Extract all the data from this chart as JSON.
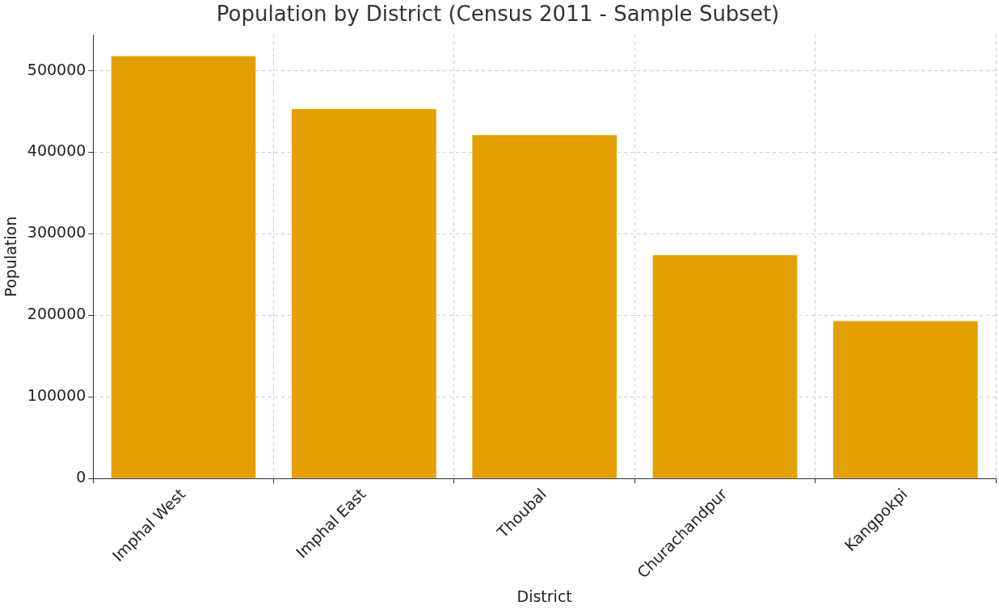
{
  "chart_data": {
    "type": "bar",
    "title": "Population by District (Census 2011 - Sample Subset)",
    "xlabel": "District",
    "ylabel": "Population",
    "categories": [
      "Imphal West",
      "Imphal East",
      "Thoubal",
      "Churachandpur",
      "Kangpokpi"
    ],
    "values": [
      518000,
      453000,
      421000,
      274000,
      193000
    ],
    "color": "#e3a000",
    "ylim": [
      0,
      544000
    ],
    "yticks": [
      0,
      100000,
      200000,
      300000,
      400000,
      500000
    ],
    "grid": true,
    "line_style": "dashed"
  }
}
